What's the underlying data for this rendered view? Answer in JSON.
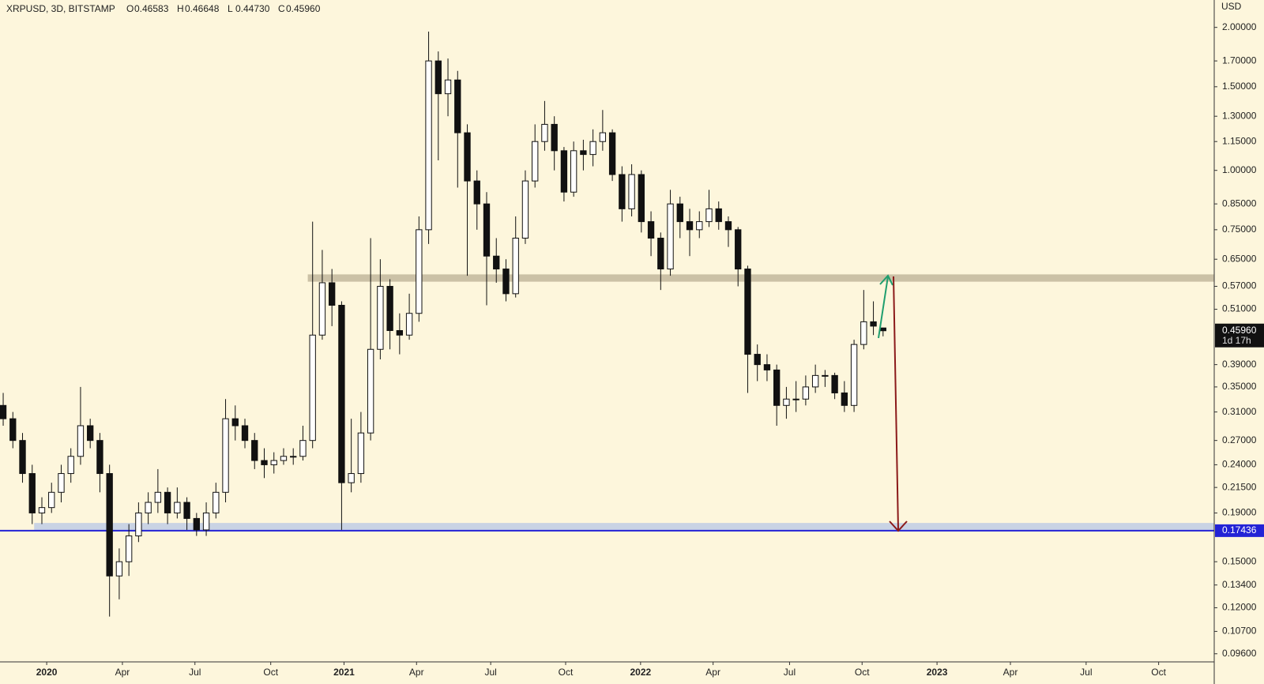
{
  "chart_data": {
    "type": "candlestick",
    "title": "XRPUSD, 3D, BITSTAMP",
    "ohlc_header": [
      {
        "prefix": "O",
        "text": "0.46583"
      },
      {
        "prefix": "H",
        "text": "0.46648"
      },
      {
        "prefix": "L",
        "text": "0.44730"
      },
      {
        "prefix": "C",
        "text": "0.45960"
      }
    ],
    "y_unit": "USD",
    "log_scale": true,
    "up_color": "#ffffff",
    "down_color": "#111111",
    "open": [
      0.32,
      0.3,
      0.27,
      0.23,
      0.19,
      0.195,
      0.21,
      0.23,
      0.25,
      0.29,
      0.27,
      0.23,
      0.14,
      0.15,
      0.17,
      0.19,
      0.2,
      0.21,
      0.19,
      0.2,
      0.185,
      0.175,
      0.19,
      0.21,
      0.3,
      0.29,
      0.27,
      0.245,
      0.24,
      0.245,
      0.25,
      0.25,
      0.27,
      0.45,
      0.58,
      0.52,
      0.22,
      0.23,
      0.28,
      0.42,
      0.57,
      0.46,
      0.45,
      0.5,
      0.75,
      1.7,
      1.45,
      1.55,
      1.2,
      0.95,
      0.85,
      0.66,
      0.62,
      0.55,
      0.72,
      0.95,
      1.15,
      1.25,
      1.1,
      0.9,
      1.1,
      1.08,
      1.15,
      1.2,
      0.98,
      0.83,
      0.98,
      0.78,
      0.72,
      0.62,
      0.85,
      0.78,
      0.75,
      0.78,
      0.83,
      0.78,
      0.75,
      0.62,
      0.41,
      0.39,
      0.38,
      0.32,
      0.33,
      0.33,
      0.35,
      0.37,
      0.37,
      0.34,
      0.32,
      0.43,
      0.48,
      0.46583
    ],
    "high": [
      0.34,
      0.31,
      0.28,
      0.24,
      0.205,
      0.22,
      0.24,
      0.26,
      0.35,
      0.3,
      0.28,
      0.24,
      0.16,
      0.18,
      0.2,
      0.21,
      0.235,
      0.215,
      0.215,
      0.205,
      0.19,
      0.2,
      0.22,
      0.33,
      0.32,
      0.3,
      0.28,
      0.26,
      0.255,
      0.26,
      0.26,
      0.29,
      0.78,
      0.68,
      0.62,
      0.53,
      0.3,
      0.31,
      0.72,
      0.65,
      0.59,
      0.5,
      0.55,
      0.8,
      1.96,
      1.78,
      1.72,
      1.62,
      1.25,
      1.0,
      0.9,
      0.72,
      0.65,
      0.8,
      1.0,
      1.25,
      1.4,
      1.3,
      1.12,
      1.15,
      1.16,
      1.22,
      1.34,
      1.22,
      1.02,
      1.03,
      1.0,
      0.82,
      0.74,
      0.91,
      0.88,
      0.83,
      0.82,
      0.91,
      0.86,
      0.8,
      0.76,
      0.63,
      0.43,
      0.41,
      0.39,
      0.35,
      0.36,
      0.37,
      0.39,
      0.38,
      0.375,
      0.36,
      0.44,
      0.56,
      0.53,
      0.46648
    ],
    "low": [
      0.29,
      0.26,
      0.22,
      0.18,
      0.18,
      0.19,
      0.2,
      0.22,
      0.24,
      0.26,
      0.21,
      0.115,
      0.125,
      0.14,
      0.165,
      0.18,
      0.19,
      0.18,
      0.185,
      0.175,
      0.17,
      0.17,
      0.185,
      0.2,
      0.27,
      0.26,
      0.235,
      0.225,
      0.23,
      0.24,
      0.24,
      0.245,
      0.26,
      0.44,
      0.47,
      0.175,
      0.21,
      0.22,
      0.27,
      0.4,
      0.42,
      0.41,
      0.44,
      0.48,
      0.7,
      1.05,
      1.3,
      0.92,
      0.6,
      0.75,
      0.52,
      0.58,
      0.53,
      0.54,
      0.7,
      0.92,
      1.1,
      1.0,
      0.86,
      0.88,
      1.0,
      1.02,
      1.1,
      0.95,
      0.78,
      0.8,
      0.74,
      0.66,
      0.56,
      0.6,
      0.72,
      0.66,
      0.72,
      0.76,
      0.75,
      0.69,
      0.57,
      0.34,
      0.36,
      0.36,
      0.29,
      0.3,
      0.31,
      0.32,
      0.34,
      0.35,
      0.33,
      0.31,
      0.31,
      0.42,
      0.45,
      0.4473
    ],
    "close": [
      0.3,
      0.27,
      0.23,
      0.19,
      0.195,
      0.21,
      0.23,
      0.25,
      0.29,
      0.27,
      0.23,
      0.14,
      0.15,
      0.17,
      0.19,
      0.2,
      0.21,
      0.19,
      0.2,
      0.185,
      0.175,
      0.19,
      0.21,
      0.3,
      0.29,
      0.27,
      0.245,
      0.24,
      0.245,
      0.25,
      0.25,
      0.27,
      0.45,
      0.58,
      0.52,
      0.22,
      0.23,
      0.28,
      0.42,
      0.57,
      0.46,
      0.45,
      0.5,
      0.75,
      1.7,
      1.45,
      1.55,
      1.2,
      0.95,
      0.85,
      0.66,
      0.62,
      0.55,
      0.72,
      0.95,
      1.15,
      1.25,
      1.1,
      0.9,
      1.1,
      1.08,
      1.15,
      1.2,
      0.98,
      0.83,
      0.98,
      0.78,
      0.72,
      0.62,
      0.85,
      0.78,
      0.75,
      0.78,
      0.83,
      0.78,
      0.75,
      0.62,
      0.41,
      0.39,
      0.38,
      0.32,
      0.33,
      0.33,
      0.35,
      0.37,
      0.37,
      0.34,
      0.32,
      0.43,
      0.48,
      0.47,
      0.4596
    ],
    "last_price_label": "0.45960",
    "countdown": "1d 17h",
    "xlim": [
      -0.33,
      125.25
    ],
    "xticks": [
      {
        "value": 4.5,
        "label": "2020"
      },
      {
        "value": 12.33,
        "label": "Apr"
      },
      {
        "value": 19.83,
        "label": "Jul"
      },
      {
        "value": 27.67,
        "label": "Oct"
      },
      {
        "value": 35.25,
        "label": "2021"
      },
      {
        "value": 42.75,
        "label": "Apr"
      },
      {
        "value": 50.42,
        "label": "Jul"
      },
      {
        "value": 58.17,
        "label": "Oct"
      },
      {
        "value": 65.92,
        "label": "2022"
      },
      {
        "value": 73.42,
        "label": "Apr"
      },
      {
        "value": 81.33,
        "label": "Jul"
      },
      {
        "value": 88.83,
        "label": "Oct"
      },
      {
        "value": 96.58,
        "label": "2023"
      },
      {
        "value": 104.17,
        "label": "Apr"
      },
      {
        "value": 112,
        "label": "Jul"
      },
      {
        "value": 119.5,
        "label": "Oct"
      }
    ],
    "ylim": [
      0.0923,
      2.284
    ],
    "yticks": [
      {
        "value": 2.0,
        "label": "2.00000"
      },
      {
        "value": 1.7,
        "label": "1.70000"
      },
      {
        "value": 1.5,
        "label": "1.50000"
      },
      {
        "value": 1.3,
        "label": "1.30000"
      },
      {
        "value": 1.15,
        "label": "1.15000"
      },
      {
        "value": 1.0,
        "label": "1.00000"
      },
      {
        "value": 0.85,
        "label": "0.85000"
      },
      {
        "value": 0.75,
        "label": "0.75000"
      },
      {
        "value": 0.65,
        "label": "0.65000"
      },
      {
        "value": 0.57,
        "label": "0.57000"
      },
      {
        "value": 0.51,
        "label": "0.51000"
      },
      {
        "value": 0.39,
        "label": "0.39000"
      },
      {
        "value": 0.35,
        "label": "0.35000"
      },
      {
        "value": 0.31,
        "label": "0.31000"
      },
      {
        "value": 0.27,
        "label": "0.27000"
      },
      {
        "value": 0.24,
        "label": "0.24000"
      },
      {
        "value": 0.215,
        "label": "0.21500"
      },
      {
        "value": 0.19,
        "label": "0.19000"
      },
      {
        "value": 0.15,
        "label": "0.15000"
      },
      {
        "value": 0.134,
        "label": "0.13400"
      },
      {
        "value": 0.12,
        "label": "0.12000"
      },
      {
        "value": 0.107,
        "label": "0.10700"
      },
      {
        "value": 0.096,
        "label": "0.09600"
      }
    ],
    "zones": [
      {
        "low": 0.583,
        "high": 0.604,
        "start": 31.5,
        "color": "#cbc1a6"
      },
      {
        "low": 0.174,
        "high": 0.181,
        "start": 3.2,
        "color": "#c9d3e4"
      }
    ],
    "support_line": {
      "value": 0.17436,
      "label": "0.17436",
      "color": "#2323d6"
    }
  }
}
